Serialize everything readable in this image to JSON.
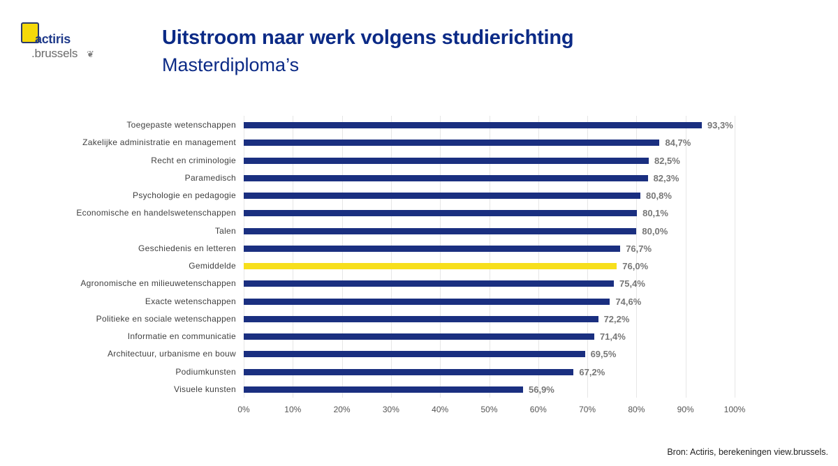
{
  "logo": {
    "line1": "actiris",
    "line2": ".brussels",
    "mark": "❦"
  },
  "header": {
    "title": "Uitstroom naar werk volgens studierichting",
    "subtitle": "Masterdiploma’s"
  },
  "footer": {
    "source": "Bron: Actiris, berekeningen view.brussels."
  },
  "colors": {
    "bar": "#1a2f80",
    "average_bar": "#f7df1c",
    "title": "#0b2a86"
  },
  "chart_data": {
    "type": "bar",
    "orientation": "horizontal",
    "title": "Uitstroom naar werk volgens studierichting",
    "subtitle": "Masterdiploma’s",
    "xlabel": "",
    "ylabel": "",
    "xlim": [
      0,
      100
    ],
    "grid": true,
    "legend": null,
    "x_ticks": [
      "0%",
      "10%",
      "20%",
      "30%",
      "40%",
      "50%",
      "60%",
      "70%",
      "80%",
      "90%",
      "100%"
    ],
    "categories": [
      "Toegepaste wetenschappen",
      "Zakelijke administratie en management",
      "Recht en criminologie",
      "Paramedisch",
      "Psychologie en pedagogie",
      "Economische en handelswetenschappen",
      "Talen",
      "Geschiedenis en letteren",
      "Gemiddelde",
      "Agronomische en milieuwetenschappen",
      "Exacte wetenschappen",
      "Politieke en sociale wetenschappen",
      "Informatie en communicatie",
      "Architectuur, urbanisme en bouw",
      "Podiumkunsten",
      "Visuele kunsten"
    ],
    "values": [
      93.3,
      84.7,
      82.5,
      82.3,
      80.8,
      80.1,
      80.0,
      76.7,
      76.0,
      75.4,
      74.6,
      72.2,
      71.4,
      69.5,
      67.2,
      56.9
    ],
    "value_labels": [
      "93,3%",
      "84,7%",
      "82,5%",
      "82,3%",
      "80,8%",
      "80,1%",
      "80,0%",
      "76,7%",
      "76,0%",
      "75,4%",
      "74,6%",
      "72,2%",
      "71,4%",
      "69,5%",
      "67,2%",
      "56,9%"
    ],
    "highlight": "Gemiddelde"
  }
}
